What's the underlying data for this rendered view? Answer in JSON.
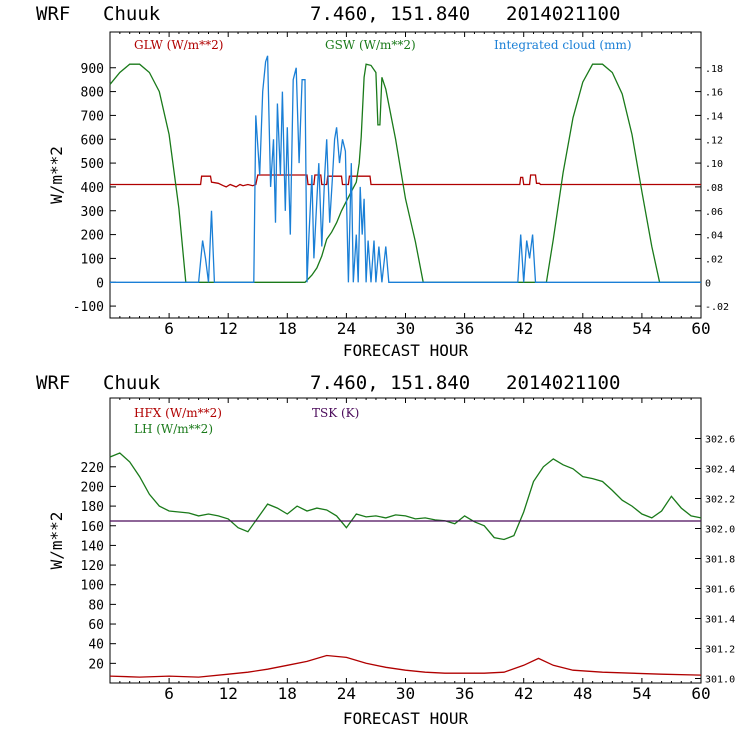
{
  "colors": {
    "red": "#b00000",
    "green": "#1a7a1a",
    "blue": "#1a7fd6",
    "purple": "#4a0a5a",
    "black": "#000000"
  },
  "chart_data": [
    {
      "type": "line",
      "header": {
        "model": "WRF",
        "station": "Chuuk",
        "coords": "7.460, 151.840",
        "run": "2014021100"
      },
      "xlabel": "FORECAST HOUR",
      "ylabel": "W/m**2",
      "xlim": [
        0,
        60
      ],
      "xticks": [
        6,
        12,
        18,
        24,
        30,
        36,
        42,
        48,
        54,
        60
      ],
      "ylim": [
        -150,
        1050
      ],
      "yticks": [
        -100,
        0,
        100,
        200,
        300,
        400,
        500,
        600,
        700,
        800,
        900
      ],
      "y2lim": [
        -0.03,
        0.21
      ],
      "y2ticks": [
        -0.02,
        0,
        0.02,
        0.04,
        0.06,
        0.08,
        0.1,
        0.12,
        0.14,
        0.16,
        0.18
      ],
      "y2ticklabels": [
        "-.02",
        "0",
        ".02",
        ".04",
        ".06",
        ".08",
        ".10",
        ".12",
        ".14",
        ".16",
        ".18"
      ],
      "series": [
        {
          "name": "GLW (W/m**2)",
          "color": "red",
          "axis": "left",
          "x": [
            0,
            9.2,
            9.3,
            10.2,
            10.3,
            11.0,
            11.5,
            11.8,
            12.2,
            12.8,
            13.2,
            13.5,
            14,
            14.5,
            14.8,
            15,
            20,
            20.1,
            20.7,
            20.8,
            21.4,
            21.5,
            22,
            22.1,
            23.5,
            23.6,
            24.2,
            24.3,
            26.4,
            26.5,
            27.1,
            27.2,
            41.6,
            41.7,
            41.9,
            42.0,
            42.6,
            42.7,
            43.2,
            43.3,
            43.6,
            43.7,
            60
          ],
          "y": [
            410,
            410,
            445,
            445,
            420,
            415,
            405,
            400,
            410,
            400,
            410,
            405,
            410,
            405,
            410,
            450,
            450,
            410,
            410,
            450,
            450,
            410,
            410,
            445,
            445,
            410,
            410,
            445,
            445,
            410,
            410,
            410,
            410,
            440,
            440,
            410,
            410,
            450,
            450,
            415,
            415,
            410,
            410
          ]
        },
        {
          "name": "GSW (W/m**2)",
          "color": "green",
          "axis": "left",
          "x": [
            0,
            1,
            2,
            3,
            4,
            5,
            6,
            7,
            7.7,
            19.8,
            20.5,
            21,
            21.5,
            22,
            22.5,
            23,
            23.5,
            24,
            24.5,
            25,
            25.3,
            25.5,
            25.8,
            26,
            26.5,
            27,
            27.2,
            27.4,
            27.6,
            28,
            29,
            30,
            31,
            31.8,
            44.3,
            45,
            46,
            47,
            48,
            49,
            50,
            51,
            52,
            53,
            54,
            55,
            55.8,
            60
          ],
          "y": [
            830,
            880,
            915,
            915,
            880,
            800,
            620,
            310,
            0,
            0,
            30,
            60,
            110,
            180,
            210,
            250,
            300,
            340,
            380,
            420,
            500,
            610,
            860,
            915,
            910,
            880,
            660,
            660,
            860,
            810,
            600,
            350,
            170,
            0,
            0,
            180,
            460,
            690,
            840,
            915,
            915,
            880,
            790,
            620,
            380,
            150,
            0,
            0
          ]
        },
        {
          "name": "Integrated cloud (mm)",
          "color": "blue",
          "axis": "right",
          "x": [
            0,
            9.0,
            9.4,
            9.7,
            10,
            10.3,
            10.6,
            11,
            14.6,
            14.8,
            15.2,
            15.5,
            15.8,
            16,
            16.3,
            16.6,
            16.8,
            17,
            17.3,
            17.5,
            17.8,
            18,
            18.3,
            18.6,
            18.9,
            19.2,
            19.5,
            19.8,
            20,
            20.2,
            20.5,
            20.7,
            21,
            21.2,
            21.5,
            21.8,
            22,
            22.3,
            22.6,
            22.8,
            23,
            23.3,
            23.6,
            23.9,
            24.2,
            24.5,
            24.7,
            25,
            25.2,
            25.4,
            25.6,
            25.8,
            26,
            26.2,
            26.5,
            26.8,
            27,
            27.3,
            27.6,
            28,
            28.3,
            28.6,
            29,
            41.4,
            41.7,
            42,
            42.3,
            42.6,
            42.9,
            43.2,
            43.5,
            60
          ],
          "y": [
            0,
            0,
            0.035,
            0.02,
            0,
            0.06,
            0,
            0,
            0,
            0.14,
            0.09,
            0.16,
            0.185,
            0.19,
            0.08,
            0.12,
            0.05,
            0.15,
            0.09,
            0.16,
            0.06,
            0.13,
            0.04,
            0.17,
            0.18,
            0.1,
            0.17,
            0.17,
            0,
            0.04,
            0.09,
            0.02,
            0.07,
            0.1,
            0.03,
            0.09,
            0.12,
            0.05,
            0.09,
            0.12,
            0.13,
            0.1,
            0.12,
            0.11,
            0,
            0.1,
            0,
            0.04,
            0,
            0.08,
            0.04,
            0.07,
            0,
            0.035,
            0,
            0.035,
            0,
            0.03,
            0,
            0.03,
            0,
            0,
            0,
            0,
            0.04,
            0,
            0.035,
            0.02,
            0.04,
            0,
            0,
            0
          ]
        }
      ],
      "legend": [
        "GLW (W/m**2)",
        "GSW (W/m**2)",
        "Integrated cloud (mm)"
      ]
    },
    {
      "type": "line",
      "header": {
        "model": "WRF",
        "station": "Chuuk",
        "coords": "7.460, 151.840",
        "run": "2014021100"
      },
      "xlabel": "FORECAST HOUR",
      "ylabel": "W/m**2",
      "xlim": [
        0,
        60
      ],
      "xticks": [
        6,
        12,
        18,
        24,
        30,
        36,
        42,
        48,
        54,
        60
      ],
      "ylim": [
        0,
        290
      ],
      "yticks": [
        20,
        40,
        60,
        80,
        100,
        120,
        140,
        160,
        180,
        200,
        220
      ],
      "y2lim": [
        300.97,
        302.87
      ],
      "y2ticks": [
        301.0,
        301.2,
        301.4,
        301.6,
        301.8,
        302.0,
        302.2,
        302.4,
        302.6
      ],
      "y2ticklabels": [
        "301.0",
        "301.2",
        "301.4",
        "301.6",
        "301.8",
        "302.0",
        "302.2",
        "302.4",
        "302.6"
      ],
      "series": [
        {
          "name": "HFX (W/m**2)",
          "color": "red",
          "axis": "left",
          "x": [
            0,
            3,
            6,
            9,
            12,
            14,
            16,
            18,
            20,
            22,
            24,
            26,
            28,
            30,
            32,
            34,
            36,
            38,
            40,
            42,
            43.5,
            45,
            47,
            50,
            53,
            56,
            60
          ],
          "y": [
            7,
            6,
            7,
            6,
            9,
            11,
            14,
            18,
            22,
            28,
            26,
            20,
            16,
            13,
            11,
            10,
            10,
            10,
            11,
            18,
            25,
            18,
            13,
            11,
            10,
            9,
            8
          ]
        },
        {
          "name": "LH (W/m**2)",
          "color": "green",
          "axis": "left",
          "x": [
            0,
            1,
            2,
            3,
            4,
            5,
            6,
            7,
            8,
            9,
            10,
            11,
            12,
            13,
            14,
            15,
            16,
            17,
            18,
            19,
            20,
            21,
            22,
            23,
            24,
            25,
            26,
            27,
            28,
            29,
            30,
            31,
            32,
            33,
            34,
            35,
            36,
            37,
            38,
            39,
            40,
            41,
            42,
            43,
            44,
            45,
            46,
            47,
            48,
            49,
            50,
            51,
            52,
            53,
            54,
            55,
            56,
            57,
            58,
            59,
            60
          ],
          "y": [
            230,
            234,
            225,
            210,
            192,
            180,
            175,
            174,
            173,
            170,
            172,
            170,
            167,
            158,
            154,
            168,
            182,
            178,
            172,
            180,
            175,
            178,
            176,
            170,
            158,
            172,
            169,
            170,
            168,
            171,
            170,
            167,
            168,
            166,
            165,
            162,
            170,
            164,
            160,
            148,
            146,
            150,
            174,
            205,
            220,
            228,
            222,
            218,
            210,
            208,
            205,
            196,
            186,
            180,
            172,
            168,
            175,
            190,
            178,
            170,
            168
          ]
        },
        {
          "name": "TSK (K)",
          "color": "purple",
          "axis": "right",
          "x": [
            0,
            60
          ],
          "y": [
            302.05,
            302.05
          ]
        }
      ],
      "legend": [
        "HFX (W/m**2)",
        "LH (W/m**2)",
        "TSK (K)"
      ]
    }
  ]
}
